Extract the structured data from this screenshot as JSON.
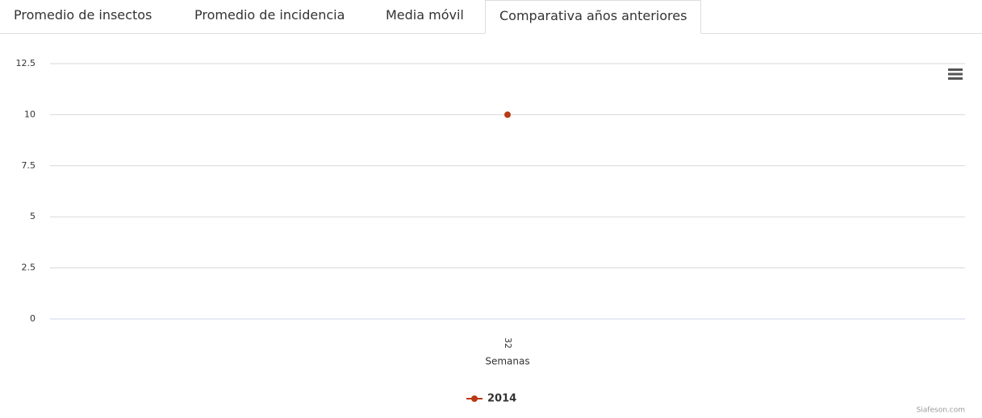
{
  "tabs": [
    "Promedio de insectos",
    "Promedio de incidencia",
    "Media móvil",
    "Comparativa años anteriores"
  ],
  "active_tab": 3,
  "chart_data": {
    "type": "line",
    "categories": [
      "32"
    ],
    "series": [
      {
        "name": "2014",
        "color": "#b83a13",
        "values": [
          10
        ]
      }
    ],
    "ylim": [
      0,
      12.5
    ],
    "yticks": [
      0,
      2.5,
      5,
      7.5,
      10,
      12.5
    ],
    "x_label": "Semanas",
    "grid": true,
    "legend": "bottom",
    "credits": "Siafeson.com"
  }
}
